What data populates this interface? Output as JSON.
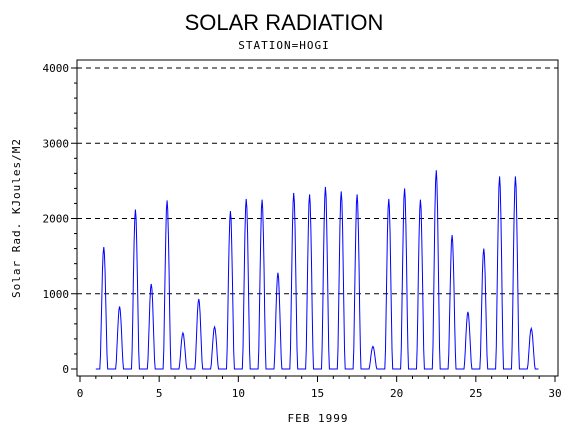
{
  "chart_data": {
    "type": "line",
    "title": "SOLAR RADIATION",
    "subtitle": "STATION=HOGI",
    "xlabel": "FEB 1999",
    "ylabel": "Solar Rad. KJoules/M2",
    "xlim": [
      0,
      30
    ],
    "ylim": [
      0,
      4000
    ],
    "x_ticks": [
      0,
      5,
      10,
      15,
      20,
      25,
      30
    ],
    "y_ticks": [
      0,
      1000,
      2000,
      3000,
      4000
    ],
    "grid": "horizontal-dashed",
    "line_color": "#0000ff",
    "daily_peaks": [
      {
        "day": 1,
        "peak": 1620
      },
      {
        "day": 2,
        "peak": 830
      },
      {
        "day": 3,
        "peak": 2120
      },
      {
        "day": 4,
        "peak": 1130
      },
      {
        "day": 5,
        "peak": 2240
      },
      {
        "day": 6,
        "peak": 480
      },
      {
        "day": 7,
        "peak": 930
      },
      {
        "day": 8,
        "peak": 560
      },
      {
        "day": 9,
        "peak": 2100
      },
      {
        "day": 10,
        "peak": 2260
      },
      {
        "day": 11,
        "peak": 2250
      },
      {
        "day": 12,
        "peak": 1280
      },
      {
        "day": 13,
        "peak": 2340
      },
      {
        "day": 14,
        "peak": 2320
      },
      {
        "day": 15,
        "peak": 2420
      },
      {
        "day": 16,
        "peak": 2360
      },
      {
        "day": 17,
        "peak": 2320
      },
      {
        "day": 18,
        "peak": 300
      },
      {
        "day": 19,
        "peak": 2260
      },
      {
        "day": 20,
        "peak": 2400
      },
      {
        "day": 21,
        "peak": 2250
      },
      {
        "day": 22,
        "peak": 2640
      },
      {
        "day": 23,
        "peak": 1780
      },
      {
        "day": 24,
        "peak": 760
      },
      {
        "day": 25,
        "peak": 1600
      },
      {
        "day": 26,
        "peak": 2560
      },
      {
        "day": 27,
        "peak": 2560
      },
      {
        "day": 28,
        "peak": 540
      }
    ]
  }
}
